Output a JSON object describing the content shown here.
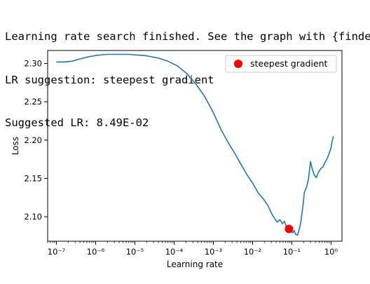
{
  "console": {
    "line1": "Learning rate search finished. See the graph with {finder_name}.plot()",
    "line2": "LR suggestion: steepest gradient",
    "line3": "Suggested LR: 8.49E-02"
  },
  "colors": {
    "line": "#1f77b4",
    "marker": "#ff0000",
    "axes": "#000000",
    "legend_border": "#cccccc"
  },
  "chart_data": {
    "type": "line",
    "title": "",
    "xlabel": "Learning rate",
    "ylabel": "Loss",
    "xscale": "log",
    "xlim": [
      6e-08,
      1.9
    ],
    "ylim": [
      2.068,
      2.317
    ],
    "x_ticks": [
      1e-07,
      1e-06,
      1e-05,
      0.0001,
      0.001,
      0.01,
      0.1,
      1
    ],
    "x_tick_labels": [
      "10⁻⁷",
      "10⁻⁶",
      "10⁻⁵",
      "10⁻⁴",
      "10⁻³",
      "10⁻²",
      "10⁻¹",
      "10⁰"
    ],
    "y_ticks": [
      2.1,
      2.15,
      2.2,
      2.25,
      2.3
    ],
    "y_tick_labels": [
      "2.10",
      "2.15",
      "2.20",
      "2.25",
      "2.30"
    ],
    "grid": false,
    "legend_position": "upper right",
    "series": [
      {
        "x": [
          1e-07,
          1.5e-07,
          2.5e-07,
          4e-07,
          7e-07,
          1.2e-06,
          2e-06,
          4e-06,
          7e-06,
          1.2e-05,
          2e-05,
          4e-05,
          7e-05,
          0.00012,
          0.0002,
          0.00035,
          0.0006,
          0.001,
          0.0016,
          0.0025,
          0.0035,
          0.005,
          0.007,
          0.01,
          0.014,
          0.019,
          0.025,
          0.03,
          0.035,
          0.042,
          0.05,
          0.058,
          0.065,
          0.072,
          0.08,
          0.0849,
          0.095,
          0.105,
          0.115,
          0.125,
          0.14,
          0.155,
          0.17,
          0.19,
          0.21,
          0.24,
          0.27,
          0.3,
          0.33,
          0.37,
          0.42,
          0.48,
          0.55,
          0.62,
          0.7,
          0.8,
          0.9,
          1.0,
          1.05,
          1.1,
          1.15
        ],
        "y": [
          2.302,
          2.302,
          2.303,
          2.306,
          2.309,
          2.311,
          2.312,
          2.312,
          2.312,
          2.311,
          2.31,
          2.307,
          2.303,
          2.297,
          2.288,
          2.274,
          2.257,
          2.236,
          2.213,
          2.195,
          2.183,
          2.169,
          2.156,
          2.144,
          2.131,
          2.123,
          2.114,
          2.105,
          2.099,
          2.093,
          2.096,
          2.091,
          2.094,
          2.088,
          2.085,
          2.084,
          2.081,
          2.079,
          2.082,
          2.077,
          2.076,
          2.084,
          2.093,
          2.112,
          2.132,
          2.139,
          2.151,
          2.172,
          2.163,
          2.155,
          2.151,
          2.158,
          2.163,
          2.165,
          2.171,
          2.176,
          2.183,
          2.19,
          2.197,
          2.201,
          2.205
        ]
      }
    ],
    "markers": [
      {
        "label": "steepest gradient",
        "x": 0.0849,
        "y": 2.084
      }
    ]
  }
}
